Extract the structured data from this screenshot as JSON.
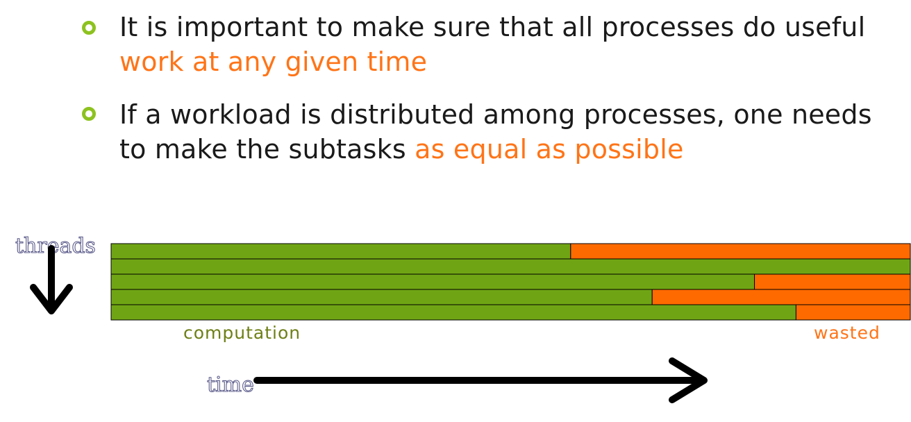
{
  "bullets": [
    {
      "text": "It is important to make sure that all processes do useful ",
      "highlight": "work at any given time",
      "after": ""
    },
    {
      "text": "If a workload is distributed among processes, one needs to make the subtasks ",
      "highlight": "as equal as possible",
      "after": ""
    }
  ],
  "diagram": {
    "threads_label": "threads",
    "time_label": "time",
    "computation_label": "computation",
    "wasted_label": "wasted",
    "colors": {
      "computation": "#6FA514",
      "wasted": "#FF6A00",
      "highlight": "#FF7417",
      "bullet": "#8DC21F"
    },
    "threads": [
      {
        "computation_fraction": 0.575
      },
      {
        "computation_fraction": 1.0
      },
      {
        "computation_fraction": 0.805
      },
      {
        "computation_fraction": 0.677
      },
      {
        "computation_fraction": 0.857
      }
    ]
  }
}
